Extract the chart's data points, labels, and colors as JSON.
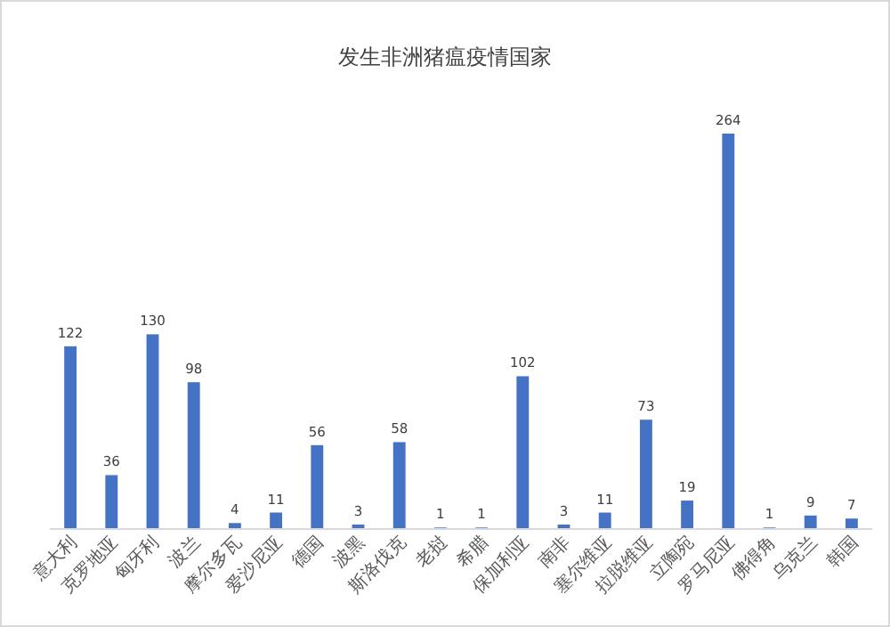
{
  "chart_data": {
    "type": "bar",
    "title": "发生非洲猪瘟疫情国家",
    "categories": [
      "意大利",
      "克罗地亚",
      "匈牙利",
      "波兰",
      "摩尔多瓦",
      "爱沙尼亚",
      "德国",
      "波黑",
      "斯洛伐克",
      "老挝",
      "希腊",
      "保加利亚",
      "南非",
      "塞尔维亚",
      "拉脱维亚",
      "立陶宛",
      "罗马尼亚",
      "佛得角",
      "乌克兰",
      "韩国"
    ],
    "values": [
      122,
      36,
      130,
      98,
      4,
      11,
      56,
      3,
      58,
      1,
      1,
      102,
      3,
      11,
      73,
      19,
      264,
      1,
      9,
      7
    ],
    "color": "#4472c4",
    "data_labels": true
  }
}
